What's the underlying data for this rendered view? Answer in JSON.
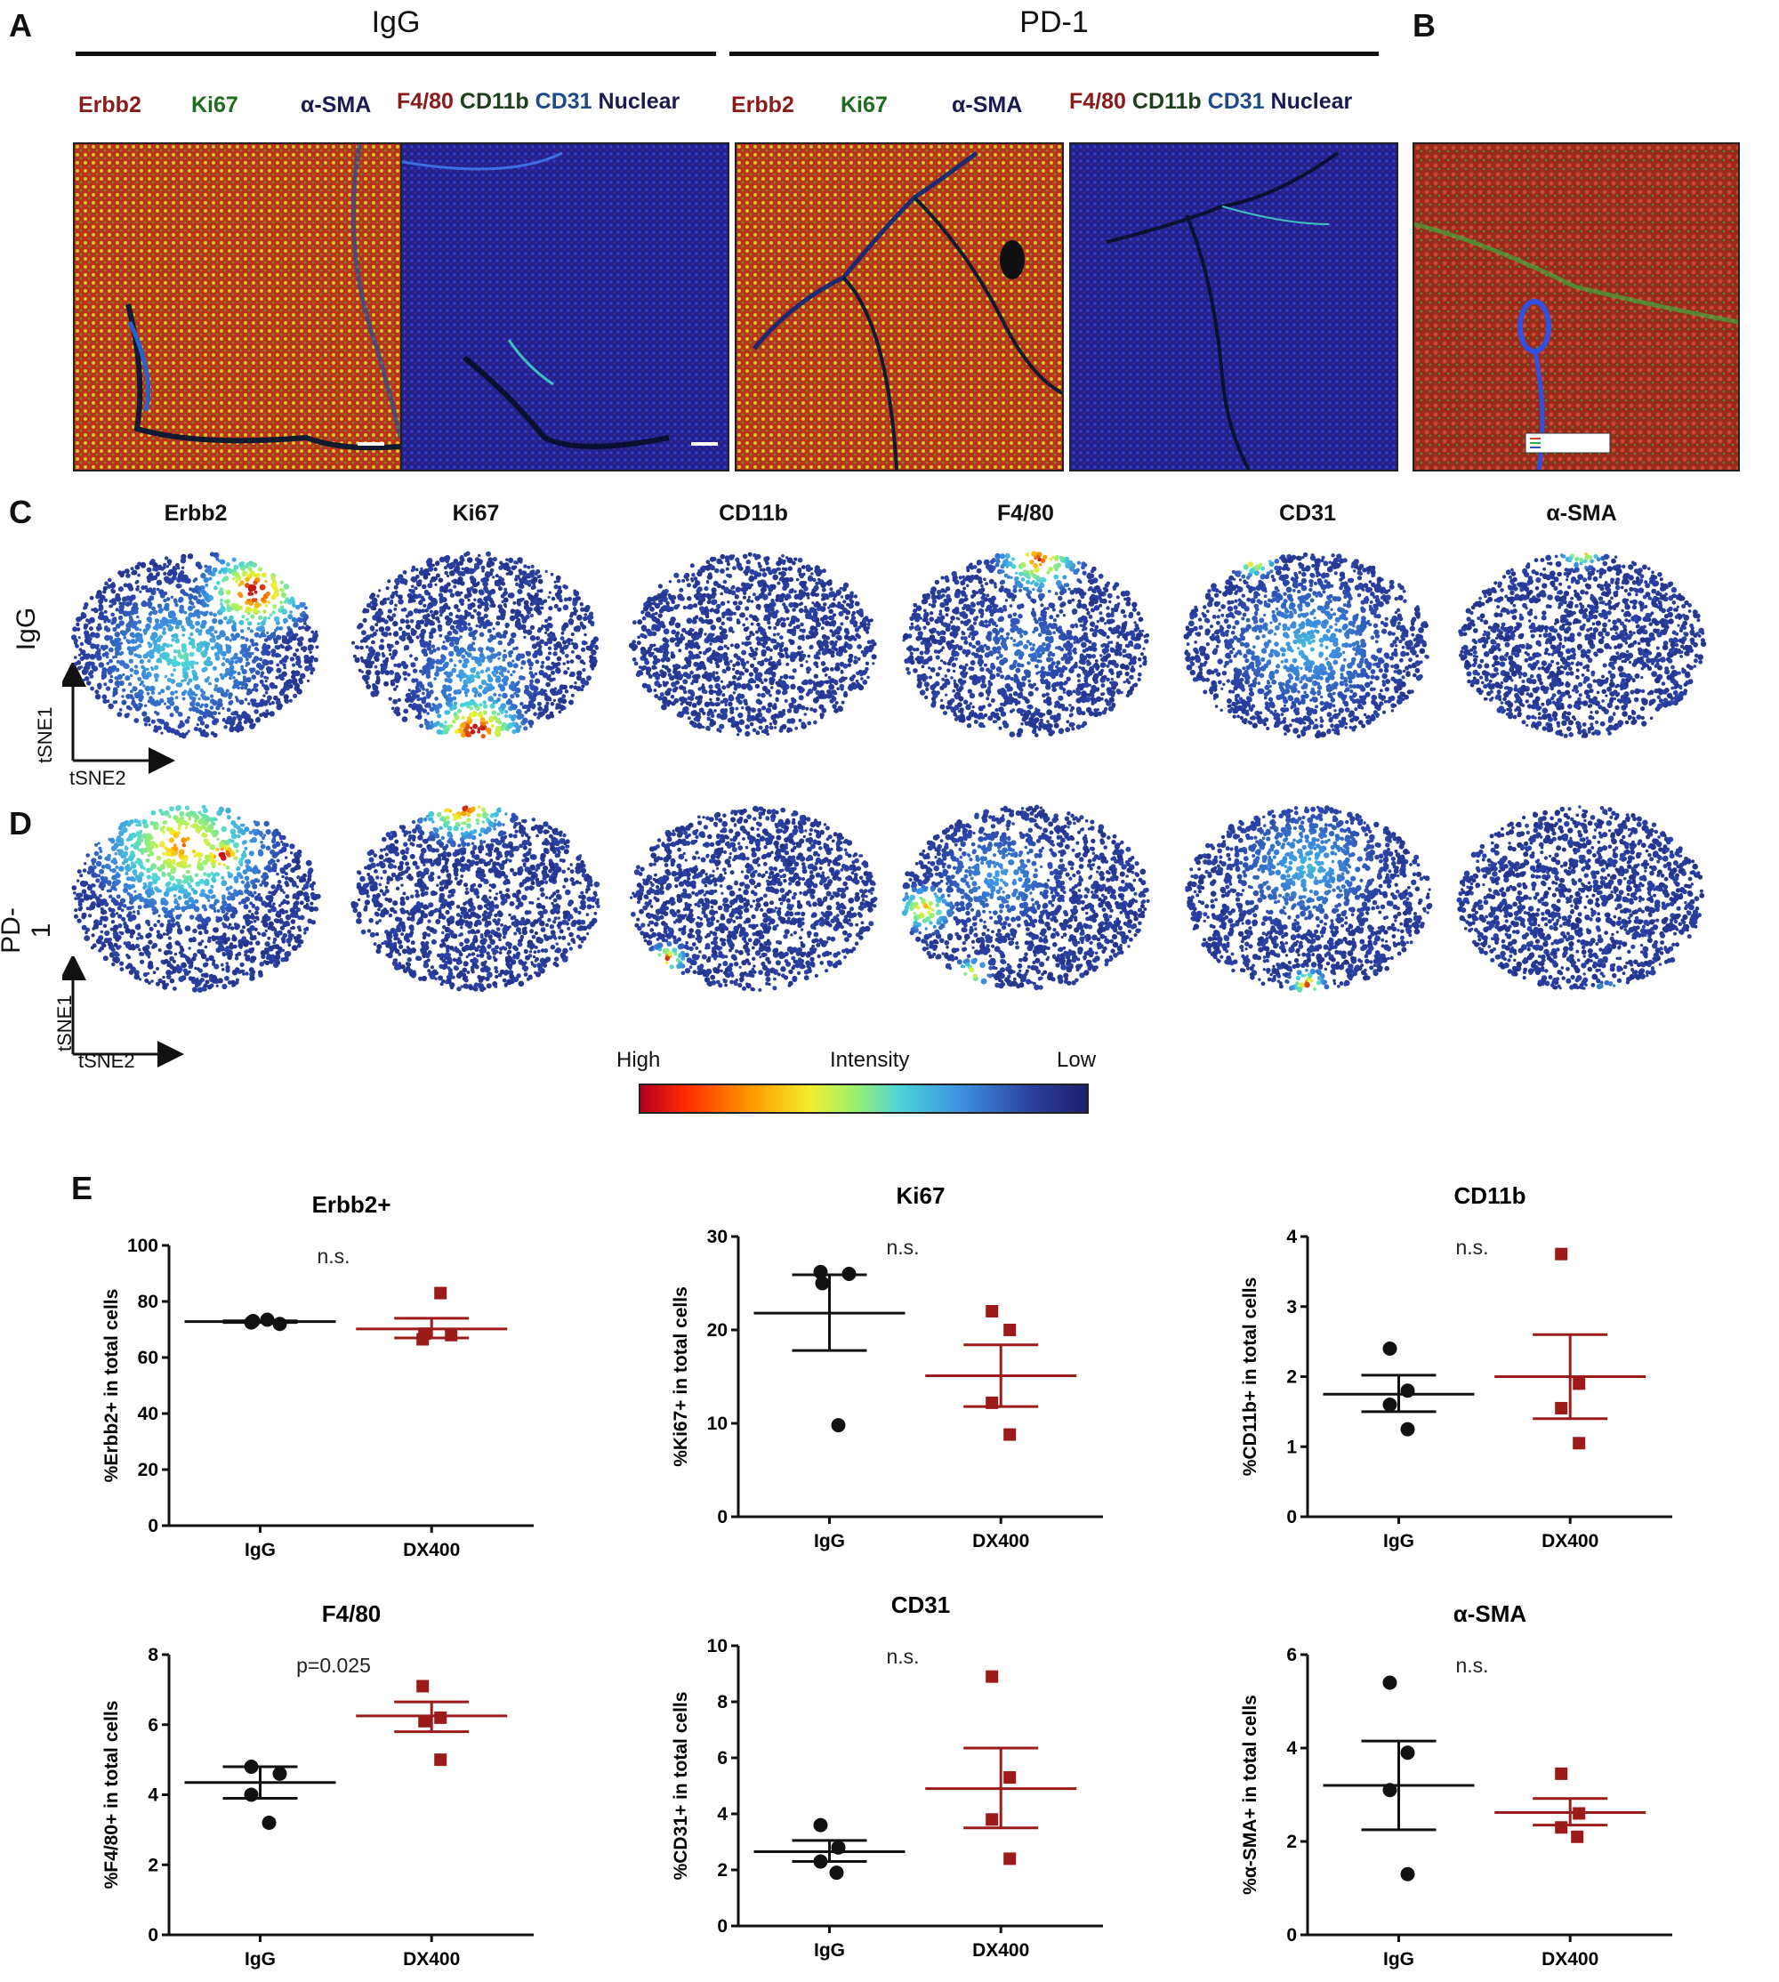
{
  "panels": {
    "A": "A",
    "B": "B",
    "C": "C",
    "D": "D",
    "E": "E"
  },
  "panelA": {
    "group_igg": "IgG",
    "group_pd1": "PD-1",
    "stain_set1": [
      {
        "text": "Erbb2",
        "color": "#8b1a1a"
      },
      {
        "text": "Ki67",
        "color": "#1f6b1f"
      },
      {
        "text": "α-SMA",
        "color": "#1a1a50"
      }
    ],
    "stain_set2": [
      {
        "text": "F4/80",
        "color": "#8b1a1a"
      },
      {
        "text": "CD11b",
        "color": "#1f3f1f"
      },
      {
        "text": "CD31",
        "color": "#1c4a8a"
      },
      {
        "text": "Nuclear",
        "color": "#1a1a50"
      }
    ]
  },
  "tsne": {
    "markers": [
      "Erbb2",
      "Ki67",
      "CD11b",
      "F4/80",
      "CD31",
      "α-SMA"
    ],
    "row_igg": "IgG",
    "row_pd1": "PD-1",
    "axis_y": "tSNE1",
    "axis_x": "tSNE2",
    "colorbar": {
      "high": "High",
      "mid": "Intensity",
      "low": "Low"
    }
  },
  "colors": {
    "igg_points": "#111111",
    "dx400_points": "#9b1b1b",
    "igg_line": "#111111",
    "dx400_line": "#9b1b1b"
  },
  "chart_data": [
    {
      "type": "scatter",
      "title": "Erbb2+",
      "ylabel": "%Erbb2+ in total cells",
      "annotation": "n.s.",
      "categories": [
        "IgG",
        "DX400"
      ],
      "ylim": [
        0,
        100
      ],
      "yticks": [
        0,
        20,
        40,
        60,
        80,
        100
      ],
      "series": [
        {
          "values": [
            72.5,
            72,
            73,
            73.5
          ],
          "mean": 72.8,
          "sem": [
            72.5,
            73.1
          ]
        },
        {
          "values": [
            66.5,
            68,
            68.5,
            83
          ],
          "mean": 70.2,
          "sem": [
            67,
            74
          ]
        }
      ]
    },
    {
      "type": "scatter",
      "title": "Ki67",
      "ylabel": "%Ki67+ in total cells",
      "annotation": "n.s.",
      "categories": [
        "IgG",
        "DX400"
      ],
      "ylim": [
        0,
        30
      ],
      "yticks": [
        0,
        10,
        20,
        30
      ],
      "series": [
        {
          "values": [
            26.2,
            26,
            25,
            9.8
          ],
          "mean": 21.8,
          "sem": [
            17.8,
            25.9
          ]
        },
        {
          "values": [
            22,
            20,
            12.2,
            8.8
          ],
          "mean": 15.1,
          "sem": [
            11.8,
            18.4
          ]
        }
      ]
    },
    {
      "type": "scatter",
      "title": "CD11b",
      "ylabel": "%CD11b+ in total cells",
      "annotation": "n.s.",
      "categories": [
        "IgG",
        "DX400"
      ],
      "ylim": [
        0,
        4
      ],
      "yticks": [
        0,
        1,
        2,
        3,
        4
      ],
      "series": [
        {
          "values": [
            2.4,
            1.8,
            1.6,
            1.25
          ],
          "mean": 1.75,
          "sem": [
            1.5,
            2.02
          ]
        },
        {
          "values": [
            3.75,
            1.9,
            1.55,
            1.05
          ],
          "mean": 2.0,
          "sem": [
            1.4,
            2.6
          ]
        }
      ]
    },
    {
      "type": "scatter",
      "title": "F4/80",
      "ylabel": "%F4/80+ in total cells",
      "annotation": "p=0.025",
      "categories": [
        "IgG",
        "DX400"
      ],
      "ylim": [
        0,
        8
      ],
      "yticks": [
        0,
        2,
        4,
        6,
        8
      ],
      "series": [
        {
          "values": [
            4.8,
            4.6,
            4.0,
            3.2
          ],
          "mean": 4.35,
          "sem": [
            3.9,
            4.8
          ]
        },
        {
          "values": [
            7.1,
            6.2,
            6.1,
            5.0
          ],
          "mean": 6.25,
          "sem": [
            5.8,
            6.65
          ]
        }
      ]
    },
    {
      "type": "scatter",
      "title": "CD31",
      "ylabel": "%CD31+ in total cells",
      "annotation": "n.s.",
      "categories": [
        "IgG",
        "DX400"
      ],
      "ylim": [
        0,
        10
      ],
      "yticks": [
        0,
        2,
        4,
        6,
        8,
        10
      ],
      "series": [
        {
          "values": [
            3.6,
            2.8,
            2.3,
            1.9
          ],
          "mean": 2.65,
          "sem": [
            2.3,
            3.05
          ]
        },
        {
          "values": [
            8.9,
            5.3,
            3.8,
            2.4
          ],
          "mean": 4.9,
          "sem": [
            3.5,
            6.35
          ]
        }
      ]
    },
    {
      "type": "scatter",
      "title": "α-SMA",
      "ylabel": "%α-SMA+ in total cells",
      "annotation": "n.s.",
      "categories": [
        "IgG",
        "DX400"
      ],
      "ylim": [
        0,
        6
      ],
      "yticks": [
        0,
        2,
        4,
        6
      ],
      "series": [
        {
          "values": [
            5.4,
            3.9,
            3.1,
            1.3
          ],
          "mean": 3.2,
          "sem": [
            2.25,
            4.15
          ]
        },
        {
          "values": [
            3.45,
            2.6,
            2.3,
            2.1
          ],
          "mean": 2.62,
          "sem": [
            2.35,
            2.92
          ]
        }
      ]
    }
  ]
}
